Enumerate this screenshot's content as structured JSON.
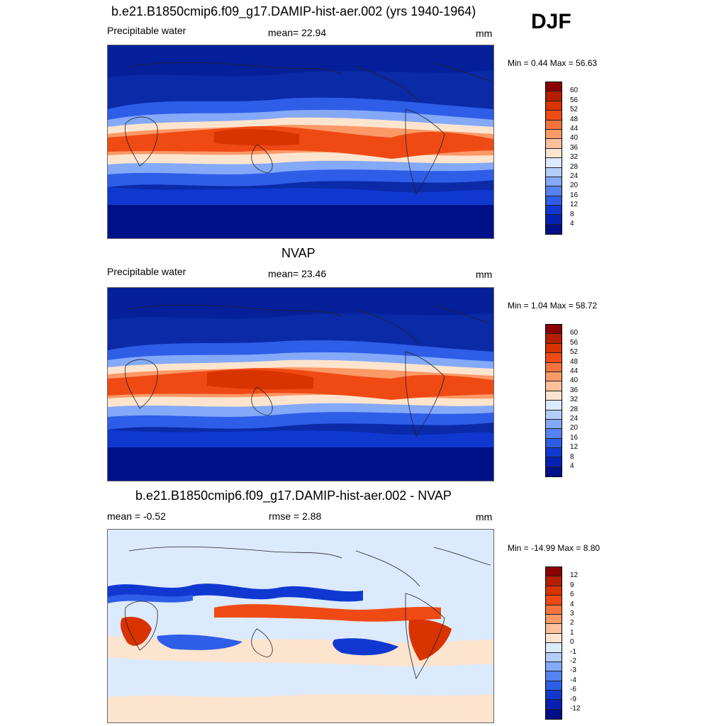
{
  "season": "DJF",
  "panels": [
    {
      "title": "b.e21.B1850cmip6.f09_g17.DAMIP-hist-aer.002 (yrs 1940-1964)",
      "left_label": "Precipitable water",
      "center_label": "mean=  22.94",
      "units": "mm",
      "minmax": "Min =   0.44 Max =  56.63",
      "colorbar_labels": [
        "60",
        "56",
        "52",
        "48",
        "44",
        "40",
        "36",
        "32",
        "28",
        "24",
        "20",
        "16",
        "12",
        "8",
        "4"
      ],
      "colorbar_colors": [
        "#8b0000",
        "#b51e00",
        "#d93300",
        "#f04a14",
        "#f7733e",
        "#fb9967",
        "#fdc09b",
        "#fde4cf",
        "#dceafd",
        "#b3cdfb",
        "#84a9f8",
        "#5782f3",
        "#2e5de8",
        "#1038d1",
        "#0520b3",
        "#001088"
      ]
    },
    {
      "title": "NVAP",
      "left_label": "Precipitable water",
      "center_label": "mean=  23.46",
      "units": "mm",
      "minmax": "Min =   1.04 Max =  58.72",
      "colorbar_labels": [
        "60",
        "56",
        "52",
        "48",
        "44",
        "40",
        "36",
        "32",
        "28",
        "24",
        "20",
        "16",
        "12",
        "8",
        "4"
      ],
      "colorbar_colors": [
        "#8b0000",
        "#b51e00",
        "#d93300",
        "#f04a14",
        "#f7733e",
        "#fb9967",
        "#fdc09b",
        "#fde4cf",
        "#dceafd",
        "#b3cdfb",
        "#84a9f8",
        "#5782f3",
        "#2e5de8",
        "#1038d1",
        "#0520b3",
        "#001088"
      ]
    },
    {
      "title": "b.e21.B1850cmip6.f09_g17.DAMIP-hist-aer.002 - NVAP",
      "left_label": "mean =  -0.52",
      "center_label": "rmse =   2.88",
      "units": "mm",
      "minmax": "Min = -14.99 Max =   8.80",
      "colorbar_labels": [
        "12",
        "9",
        "6",
        "4",
        "3",
        "2",
        "1",
        "0",
        "-1",
        "-2",
        "-3",
        "-4",
        "-6",
        "-9",
        "-12"
      ],
      "colorbar_colors": [
        "#8b0000",
        "#b51e00",
        "#d93300",
        "#f04a14",
        "#f7733e",
        "#fb9967",
        "#fdc09b",
        "#fde4cf",
        "#dceafd",
        "#b3cdfb",
        "#84a9f8",
        "#5782f3",
        "#2e5de8",
        "#1038d1",
        "#0520b3",
        "#001088"
      ]
    }
  ]
}
